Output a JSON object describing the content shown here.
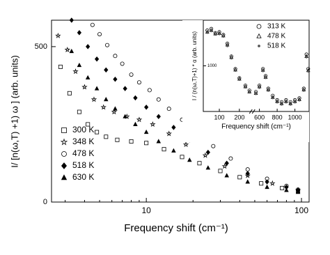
{
  "chart_data": [
    {
      "type": "scatter",
      "xlabel": "Frequency shift (cm⁻¹)",
      "ylabel": "I/  [n(ω,T) +1) ω ] (arb. units)",
      "xscale": "log",
      "xlim": [
        2.45,
        112
      ],
      "xticks": [
        10,
        100
      ],
      "ylim": [
        0,
        585
      ],
      "yticks": [
        0,
        500
      ],
      "legend": "lower left",
      "series": [
        {
          "name": "300 K",
          "marker": "square",
          "color": "#000000",
          "x": [
            2.8,
            3.2,
            3.7,
            4.2,
            4.8,
            5.5,
            6.5,
            8,
            10,
            13,
            17,
            22,
            30,
            40,
            55,
            75,
            95
          ],
          "values": [
            435,
            350,
            290,
            250,
            225,
            210,
            200,
            195,
            190,
            170,
            145,
            125,
            100,
            80,
            60,
            45,
            35
          ]
        },
        {
          "name": "348 K",
          "marker": "star",
          "color": "#000000",
          "x": [
            2.7,
            3.1,
            3.5,
            4,
            4.6,
            5.3,
            6.2,
            7.5,
            9,
            11,
            14,
            18,
            24,
            32,
            45,
            65,
            95
          ],
          "values": [
            535,
            490,
            420,
            370,
            330,
            305,
            290,
            275,
            265,
            250,
            220,
            185,
            150,
            115,
            85,
            60,
            38
          ]
        },
        {
          "name": "478 K",
          "marker": "circle",
          "color": "#000000",
          "x": [
            4.5,
            5,
            5.6,
            6.3,
            7,
            8,
            9,
            10.5,
            12,
            14,
            17,
            21,
            27,
            35,
            45,
            60,
            80,
            95
          ],
          "values": [
            570,
            540,
            505,
            470,
            445,
            410,
            385,
            360,
            330,
            300,
            265,
            225,
            180,
            140,
            105,
            75,
            52,
            40
          ]
        },
        {
          "name": "518 K",
          "marker": "diamond",
          "color": "#000000",
          "x": [
            3.3,
            3.7,
            4.2,
            4.8,
            5.5,
            6.3,
            7.3,
            8.5,
            10,
            12,
            15,
            19,
            25,
            33,
            45,
            60,
            80,
            95
          ],
          "values": [
            585,
            545,
            500,
            460,
            425,
            395,
            365,
            335,
            305,
            275,
            240,
            200,
            160,
            125,
            92,
            65,
            48,
            38
          ]
        },
        {
          "name": "630 K",
          "marker": "triangle",
          "color": "#000000",
          "x": [
            3.3,
            3.7,
            4.2,
            4.8,
            5.5,
            6.3,
            7.3,
            8.5,
            10,
            12,
            15,
            19,
            25,
            33,
            45,
            60,
            80,
            95
          ],
          "values": [
            485,
            440,
            400,
            365,
            330,
            300,
            275,
            250,
            225,
            195,
            165,
            135,
            110,
            85,
            65,
            48,
            38,
            32
          ]
        }
      ]
    },
    {
      "type": "scatter",
      "xlabel": "Frequency shift (cm⁻¹)",
      "ylabel": "I / (n(ω,T)+1) * α (arb. units)",
      "xlim": [
        20,
        1160
      ],
      "xbreak": [
        250,
        550
      ],
      "xticks": [
        100,
        200,
        600,
        800,
        1000
      ],
      "yscale": "log",
      "ylim": [
        200,
        5000
      ],
      "yticks": [
        1000
      ],
      "legend": "upper right",
      "x": [
        40,
        60,
        80,
        100,
        120,
        140,
        160,
        180,
        200,
        230,
        250,
        560,
        600,
        640,
        670,
        700,
        750,
        800,
        850,
        900,
        950,
        1000,
        1050,
        1100,
        1130,
        1150
      ],
      "series": [
        {
          "name": "313 K",
          "marker": "circle",
          "color": "#000000",
          "values": [
            3500,
            3700,
            3200,
            3300,
            3000,
            2200,
            1400,
            900,
            650,
            500,
            420,
            400,
            500,
            900,
            700,
            450,
            350,
            300,
            280,
            300,
            280,
            300,
            320,
            450,
            1500,
            900
          ]
        },
        {
          "name": "478 K",
          "marker": "triangle",
          "color": "#000000",
          "values": [
            3300,
            3500,
            3100,
            3150,
            2900,
            2100,
            1350,
            870,
            630,
            480,
            400,
            380,
            480,
            860,
            670,
            430,
            330,
            285,
            265,
            285,
            265,
            285,
            305,
            430,
            1400,
            850
          ]
        },
        {
          "name": "518 K",
          "marker": "dot",
          "color": "#555555",
          "values": [
            3200,
            3400,
            3000,
            3050,
            2800,
            2000,
            1300,
            840,
            610,
            465,
            390,
            370,
            460,
            830,
            650,
            415,
            320,
            275,
            255,
            275,
            255,
            275,
            295,
            415,
            1350,
            820
          ]
        }
      ]
    }
  ]
}
